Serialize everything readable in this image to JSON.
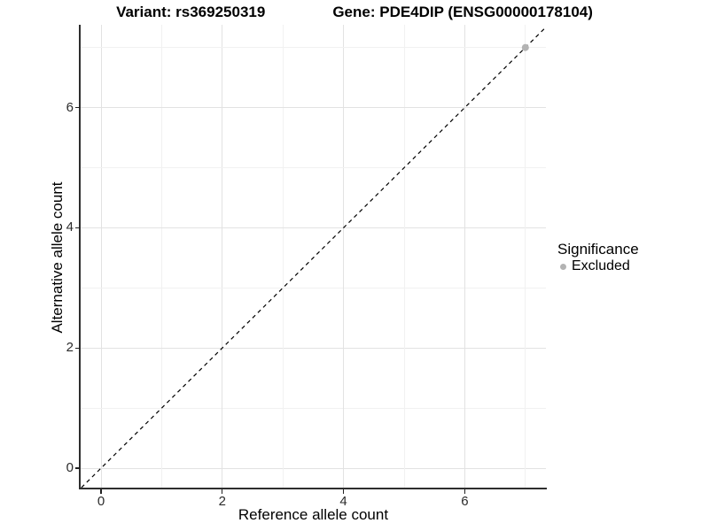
{
  "figure": {
    "title_left": "Variant: rs369250319",
    "title_right": "Gene: PDE4DIP (ENSG00000178104)"
  },
  "chart_data": {
    "type": "scatter",
    "title": "Variant: rs369250319   Gene: PDE4DIP (ENSG00000178104)",
    "xlabel": "Reference allele count",
    "ylabel": "Alternative allele count",
    "xlim": [
      -0.34,
      7.34
    ],
    "ylim": [
      -0.34,
      7.38
    ],
    "x_ticks": [
      0,
      2,
      4,
      6
    ],
    "y_ticks": [
      0,
      2,
      4,
      6
    ],
    "x_tick_labels": [
      "0",
      "2",
      "4",
      "6"
    ],
    "y_tick_labels": [
      "0",
      "2",
      "4",
      "6"
    ],
    "minor_gridlines": [
      1,
      3,
      5,
      7
    ],
    "grid": true,
    "series": [
      {
        "name": "Excluded",
        "color": "#b3b3b3",
        "points": [
          {
            "x": 7,
            "y": 7
          }
        ]
      }
    ],
    "reference_line": {
      "kind": "identity y=x",
      "style": "dashed",
      "color": "#000000"
    },
    "legend": {
      "position": "right",
      "title": "Significance",
      "entries": [
        {
          "label": "Excluded",
          "color": "#b3b3b3"
        }
      ]
    },
    "colors": {
      "background": "#ffffff",
      "major_grid": "#e2e2e2",
      "minor_grid": "#f1f1f1",
      "axis_line": "#2e2e2e"
    }
  }
}
